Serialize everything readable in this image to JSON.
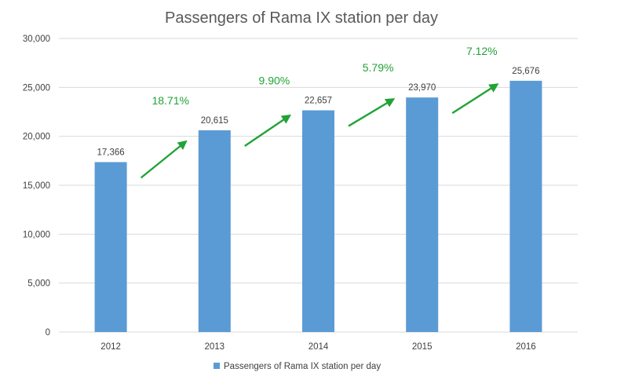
{
  "chart_data": {
    "type": "bar",
    "title": "Passengers of Rama IX station per day",
    "categories": [
      "2012",
      "2013",
      "2014",
      "2015",
      "2016"
    ],
    "series": [
      {
        "name": "Passengers of Rama IX station per day",
        "values": [
          17366,
          20615,
          22657,
          23970,
          25676
        ],
        "color": "#5b9bd5"
      }
    ],
    "data_labels": [
      "17,366",
      "20,615",
      "22,657",
      "23,970",
      "25,676"
    ],
    "ylim": [
      0,
      30000
    ],
    "y_ticks": [
      0,
      5000,
      10000,
      15000,
      20000,
      25000,
      30000
    ],
    "y_tick_labels": [
      "0",
      "5,000",
      "10,000",
      "15,000",
      "20,000",
      "25,000",
      "30,000"
    ],
    "grid": true,
    "legend_position": "bottom",
    "annotations": [
      {
        "text": "18.71%",
        "between": [
          "2012",
          "2013"
        ]
      },
      {
        "text": "9.90%",
        "between": [
          "2013",
          "2014"
        ]
      },
      {
        "text": "5.79%",
        "between": [
          "2014",
          "2015"
        ]
      },
      {
        "text": "7.12%",
        "between": [
          "2015",
          "2016"
        ]
      }
    ],
    "annotation_color": "#21a336",
    "gridline_color": "#d9d9d9"
  }
}
